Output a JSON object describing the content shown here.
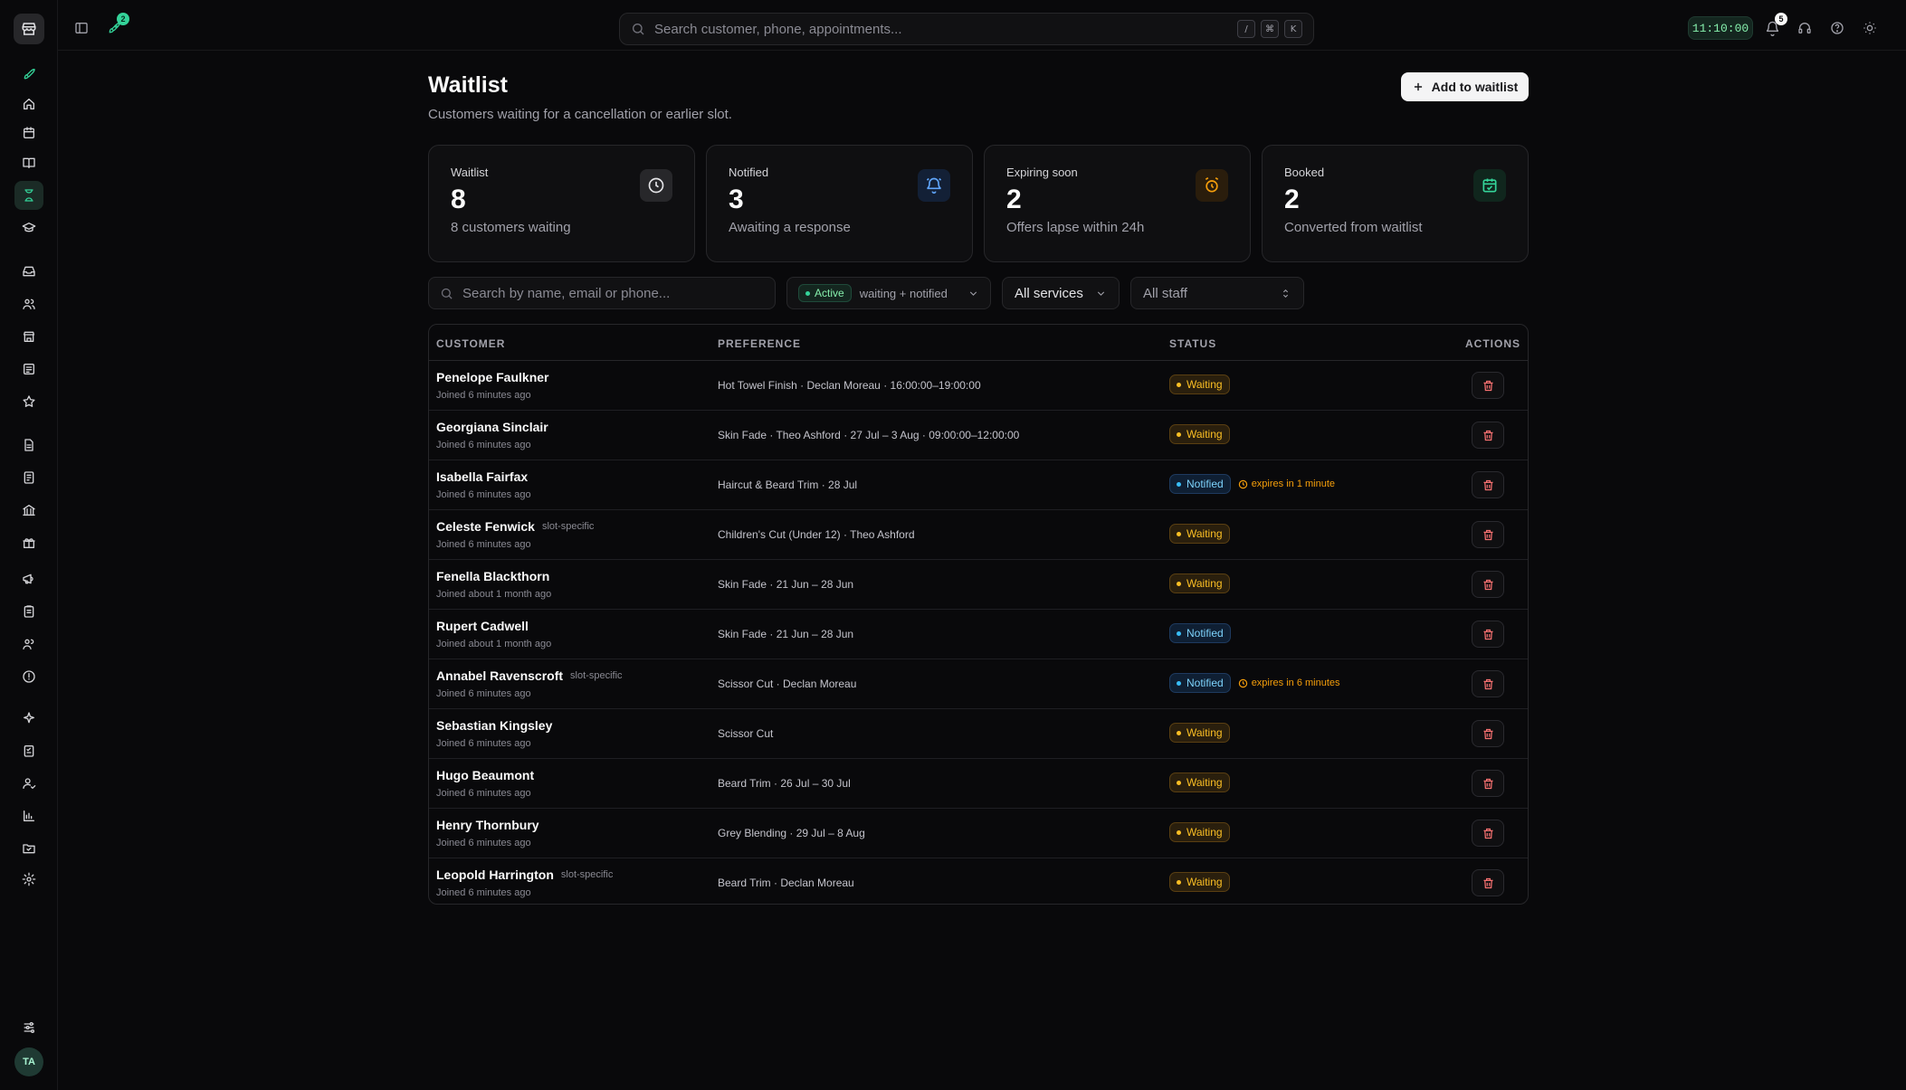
{
  "topbar": {
    "launcher_badge": "2",
    "search_placeholder": "Search customer, phone, appointments...",
    "shortcut_keys": [
      "/",
      "⌘",
      "K"
    ],
    "clock": "11:10:00",
    "notification_count": "5"
  },
  "user": {
    "initials": "TA"
  },
  "sidebar": {
    "icons": [
      "rocket-icon",
      "home-icon",
      "calendar-icon",
      "book-icon",
      "hourglass-icon",
      "graduation-cap-icon",
      "inbox-icon",
      "users-icon",
      "store-icon",
      "receipt-icon",
      "star-icon",
      "file-icon",
      "invoice-icon",
      "bank-icon",
      "gift-icon",
      "megaphone-icon",
      "clipboard-icon",
      "team-icon",
      "alert-icon",
      "sparkle-icon",
      "checklist-icon",
      "user-check-icon",
      "bar-chart-icon",
      "folder-icon",
      "gear-icon"
    ],
    "active": "hourglass-icon"
  },
  "page": {
    "title": "Waitlist",
    "subtitle": "Customers waiting for a cancellation or earlier slot.",
    "add_button": "Add to waitlist"
  },
  "stats": [
    {
      "label": "Waitlist",
      "value": "8",
      "desc": "8 customers waiting",
      "icon": "clock-icon",
      "color": "#e4e4e7"
    },
    {
      "label": "Notified",
      "value": "3",
      "desc": "Awaiting a response",
      "icon": "bell-icon",
      "color": "#60a5fa"
    },
    {
      "label": "Expiring soon",
      "value": "2",
      "desc": "Offers lapse within 24h",
      "icon": "alarm-clock-icon",
      "color": "#f59e0b"
    },
    {
      "label": "Booked",
      "value": "2",
      "desc": "Converted from waitlist",
      "icon": "calendar-check-icon",
      "color": "#34d399"
    }
  ],
  "filters": {
    "search_placeholder": "Search by name, email or phone...",
    "status_chip": "Active",
    "status_detail": "waiting + notified",
    "services": "All services",
    "staff": "All staff"
  },
  "table": {
    "columns": {
      "customer": "CUSTOMER",
      "preference": "PREFERENCE",
      "status": "STATUS",
      "actions": "ACTIONS"
    },
    "rows": [
      {
        "name": "Penelope Faulkner",
        "tag": "",
        "joined": "Joined 6 minutes ago",
        "preference": "Hot Towel Finish · Declan Moreau · 16:00:00–19:00:00",
        "status": "Waiting",
        "expires": ""
      },
      {
        "name": "Georgiana Sinclair",
        "tag": "",
        "joined": "Joined 6 minutes ago",
        "preference": "Skin Fade · Theo Ashford · 27 Jul – 3 Aug · 09:00:00–12:00:00",
        "status": "Waiting",
        "expires": ""
      },
      {
        "name": "Isabella Fairfax",
        "tag": "",
        "joined": "Joined 6 minutes ago",
        "preference": "Haircut & Beard Trim · 28 Jul",
        "status": "Notified",
        "expires": "expires in 1 minute"
      },
      {
        "name": "Celeste Fenwick",
        "tag": "slot-specific",
        "joined": "Joined 6 minutes ago",
        "preference": "Children's Cut (Under 12) · Theo Ashford",
        "status": "Waiting",
        "expires": ""
      },
      {
        "name": "Fenella Blackthorn",
        "tag": "",
        "joined": "Joined about 1 month ago",
        "preference": "Skin Fade · 21 Jun – 28 Jun",
        "status": "Waiting",
        "expires": ""
      },
      {
        "name": "Rupert Cadwell",
        "tag": "",
        "joined": "Joined about 1 month ago",
        "preference": "Skin Fade · 21 Jun – 28 Jun",
        "status": "Notified",
        "expires": ""
      },
      {
        "name": "Annabel Ravenscroft",
        "tag": "slot-specific",
        "joined": "Joined 6 minutes ago",
        "preference": "Scissor Cut · Declan Moreau",
        "status": "Notified",
        "expires": "expires in 6 minutes"
      },
      {
        "name": "Sebastian Kingsley",
        "tag": "",
        "joined": "Joined 6 minutes ago",
        "preference": "Scissor Cut",
        "status": "Waiting",
        "expires": ""
      },
      {
        "name": "Hugo Beaumont",
        "tag": "",
        "joined": "Joined 6 minutes ago",
        "preference": "Beard Trim · 26 Jul – 30 Jul",
        "status": "Waiting",
        "expires": ""
      },
      {
        "name": "Henry Thornbury",
        "tag": "",
        "joined": "Joined 6 minutes ago",
        "preference": "Grey Blending · 29 Jul – 8 Aug",
        "status": "Waiting",
        "expires": ""
      },
      {
        "name": "Leopold Harrington",
        "tag": "slot-specific",
        "joined": "Joined 6 minutes ago",
        "preference": "Beard Trim · Declan Moreau",
        "status": "Waiting",
        "expires": ""
      }
    ]
  }
}
